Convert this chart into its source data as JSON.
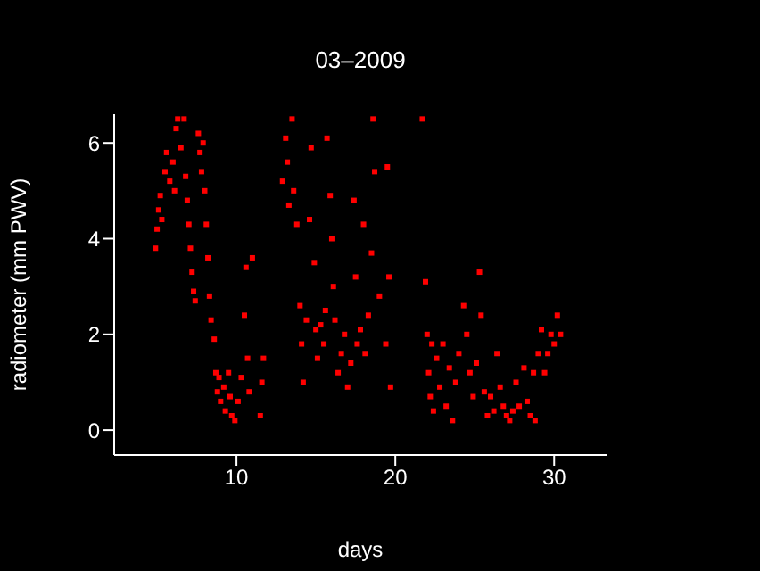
{
  "chart_data": {
    "type": "scatter",
    "title": "03–2009",
    "xlabel": "days",
    "ylabel": "radiometer (mm PWV)",
    "xlim": [
      2.3,
      33.3
    ],
    "xticks": [
      10,
      20,
      30
    ],
    "ylim": [
      -0.52,
      6.6
    ],
    "yticks": [
      0,
      2,
      4,
      6
    ],
    "grid": false,
    "marker": "square",
    "series": [
      {
        "color": "#ff0000",
        "x": [
          4.9,
          5.0,
          5.1,
          5.2,
          5.3,
          5.5,
          5.6,
          5.8,
          6.0,
          6.1,
          6.2,
          6.3,
          6.5,
          6.7,
          6.8,
          6.9,
          7.0,
          7.1,
          7.2,
          7.3,
          7.4,
          7.6,
          7.7,
          7.8,
          7.9,
          8.0,
          8.1,
          8.2,
          8.3,
          8.4,
          8.6,
          8.7,
          8.8,
          8.9,
          9.0,
          9.2,
          9.3,
          9.5,
          9.6,
          9.7,
          9.9,
          10.1,
          10.3,
          10.5,
          10.6,
          10.7,
          10.8,
          11.0,
          11.5,
          11.6,
          11.7,
          12.9,
          13.1,
          13.2,
          13.3,
          13.5,
          13.6,
          13.8,
          14.0,
          14.1,
          14.2,
          14.4,
          14.6,
          14.7,
          14.9,
          15.0,
          15.1,
          15.3,
          15.5,
          15.6,
          15.7,
          15.9,
          16.0,
          16.1,
          16.2,
          16.4,
          16.6,
          16.8,
          17.0,
          17.2,
          17.4,
          17.5,
          17.6,
          17.8,
          18.0,
          18.1,
          18.3,
          18.5,
          18.6,
          18.7,
          19.0,
          19.4,
          19.5,
          19.6,
          19.7,
          21.7,
          21.9,
          22.0,
          22.1,
          22.2,
          22.3,
          22.4,
          22.6,
          22.8,
          23.0,
          23.2,
          23.4,
          23.6,
          23.8,
          24.0,
          24.3,
          24.5,
          24.7,
          24.9,
          25.1,
          25.3,
          25.4,
          25.6,
          25.8,
          26.0,
          26.2,
          26.4,
          26.6,
          26.8,
          27.0,
          27.2,
          27.4,
          27.6,
          27.8,
          28.1,
          28.3,
          28.5,
          28.7,
          28.8,
          29.0,
          29.2,
          29.4,
          29.6,
          29.8,
          30.0,
          30.2,
          30.4
        ],
        "values": [
          3.8,
          4.2,
          4.6,
          4.9,
          4.4,
          5.4,
          5.8,
          5.2,
          5.6,
          5.0,
          6.3,
          6.5,
          5.9,
          6.5,
          5.3,
          4.8,
          4.3,
          3.8,
          3.3,
          2.9,
          2.7,
          6.2,
          5.8,
          5.4,
          6.0,
          5.0,
          4.3,
          3.6,
          2.8,
          2.3,
          1.9,
          1.2,
          0.8,
          1.1,
          0.6,
          0.9,
          0.4,
          1.2,
          0.7,
          0.3,
          0.2,
          0.6,
          1.1,
          2.4,
          3.4,
          1.5,
          0.8,
          3.6,
          0.3,
          1.0,
          1.5,
          5.2,
          6.1,
          5.6,
          4.7,
          6.5,
          5.0,
          4.3,
          2.6,
          1.8,
          1.0,
          2.3,
          4.4,
          5.9,
          3.5,
          2.1,
          1.5,
          2.2,
          1.8,
          2.5,
          6.1,
          4.9,
          4.0,
          3.0,
          2.3,
          1.2,
          1.6,
          2.0,
          0.9,
          1.4,
          4.8,
          3.2,
          1.8,
          2.1,
          4.3,
          1.6,
          2.4,
          3.7,
          6.5,
          5.4,
          2.8,
          1.8,
          5.5,
          3.2,
          0.9,
          6.5,
          3.1,
          2.0,
          1.2,
          0.7,
          1.8,
          0.4,
          1.5,
          0.9,
          1.8,
          0.5,
          1.3,
          0.2,
          1.0,
          1.6,
          2.6,
          2.0,
          1.2,
          0.7,
          1.4,
          3.3,
          2.4,
          0.8,
          0.3,
          0.7,
          0.4,
          1.6,
          0.9,
          0.5,
          0.3,
          0.2,
          0.4,
          1.0,
          0.5,
          1.3,
          0.6,
          0.3,
          1.2,
          0.2,
          1.6,
          2.1,
          1.2,
          1.6,
          2.0,
          1.8,
          2.4,
          2.0
        ]
      }
    ]
  }
}
